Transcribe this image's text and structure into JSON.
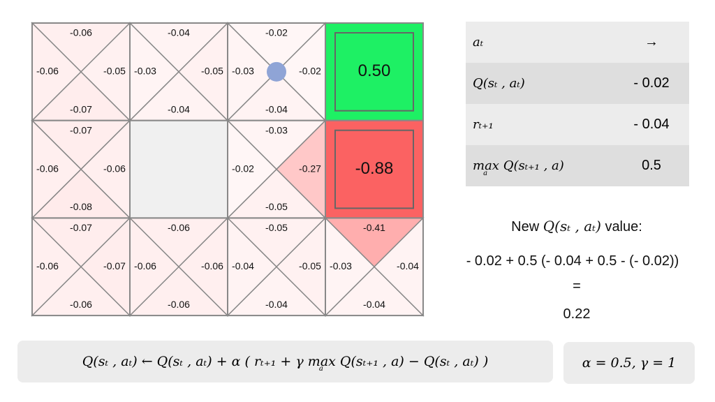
{
  "grid": {
    "rows": [
      [
        {
          "up": "-0.06",
          "left": "-0.06",
          "right": "-0.05",
          "down": "-0.07"
        },
        {
          "up": "-0.04",
          "left": "-0.03",
          "right": "-0.05",
          "down": "-0.04"
        },
        {
          "up": "-0.02",
          "left": "-0.03",
          "right": "-0.02",
          "down": "-0.04",
          "agent": true
        },
        {
          "kind": "terminal",
          "value": "0.50",
          "color": "#1ef064"
        }
      ],
      [
        {
          "up": "-0.07",
          "left": "-0.06",
          "right": "-0.06",
          "down": "-0.08"
        },
        {
          "kind": "wall"
        },
        {
          "up": "-0.03",
          "left": "-0.02",
          "right": "-0.27",
          "down": "-0.05"
        },
        {
          "kind": "terminal",
          "value": "-0.88",
          "color": "#fb6262"
        }
      ],
      [
        {
          "up": "-0.07",
          "left": "-0.06",
          "right": "-0.07",
          "down": "-0.06"
        },
        {
          "up": "-0.06",
          "left": "-0.06",
          "right": "-0.06",
          "down": "-0.06"
        },
        {
          "up": "-0.05",
          "left": "-0.04",
          "right": "-0.05",
          "down": "-0.04"
        },
        {
          "up": "-0.41",
          "left": "-0.03",
          "right": "-0.04",
          "down": "-0.04"
        }
      ]
    ]
  },
  "table": {
    "rows": [
      {
        "label": "aₜ",
        "value": "→"
      },
      {
        "label": "Q(sₜ , aₜ)",
        "value": "- 0.02"
      },
      {
        "label": "rₜ₊₁",
        "value": "- 0.04"
      },
      {
        "op": "max",
        "op_sub": "a",
        "label": "Q(sₜ₊₁ , a)",
        "value": "0.5"
      }
    ]
  },
  "update": {
    "prefix": "New",
    "math": "Q(sₜ , aₜ)",
    "suffix": "value:",
    "computation": "- 0.02 + 0.5 (- 0.04 + 0.5 - (- 0.02))",
    "equals": "=",
    "result": "0.22"
  },
  "formula": {
    "left": "Q(sₜ , aₜ)  ← Q(sₜ , aₜ) + α ( rₜ₊₁ + γ",
    "op": "max",
    "op_sub": "a",
    "right": "Q(sₜ₊₁ , a) − Q(sₜ , aₜ) )"
  },
  "params": "α = 0.5,  γ = 1"
}
